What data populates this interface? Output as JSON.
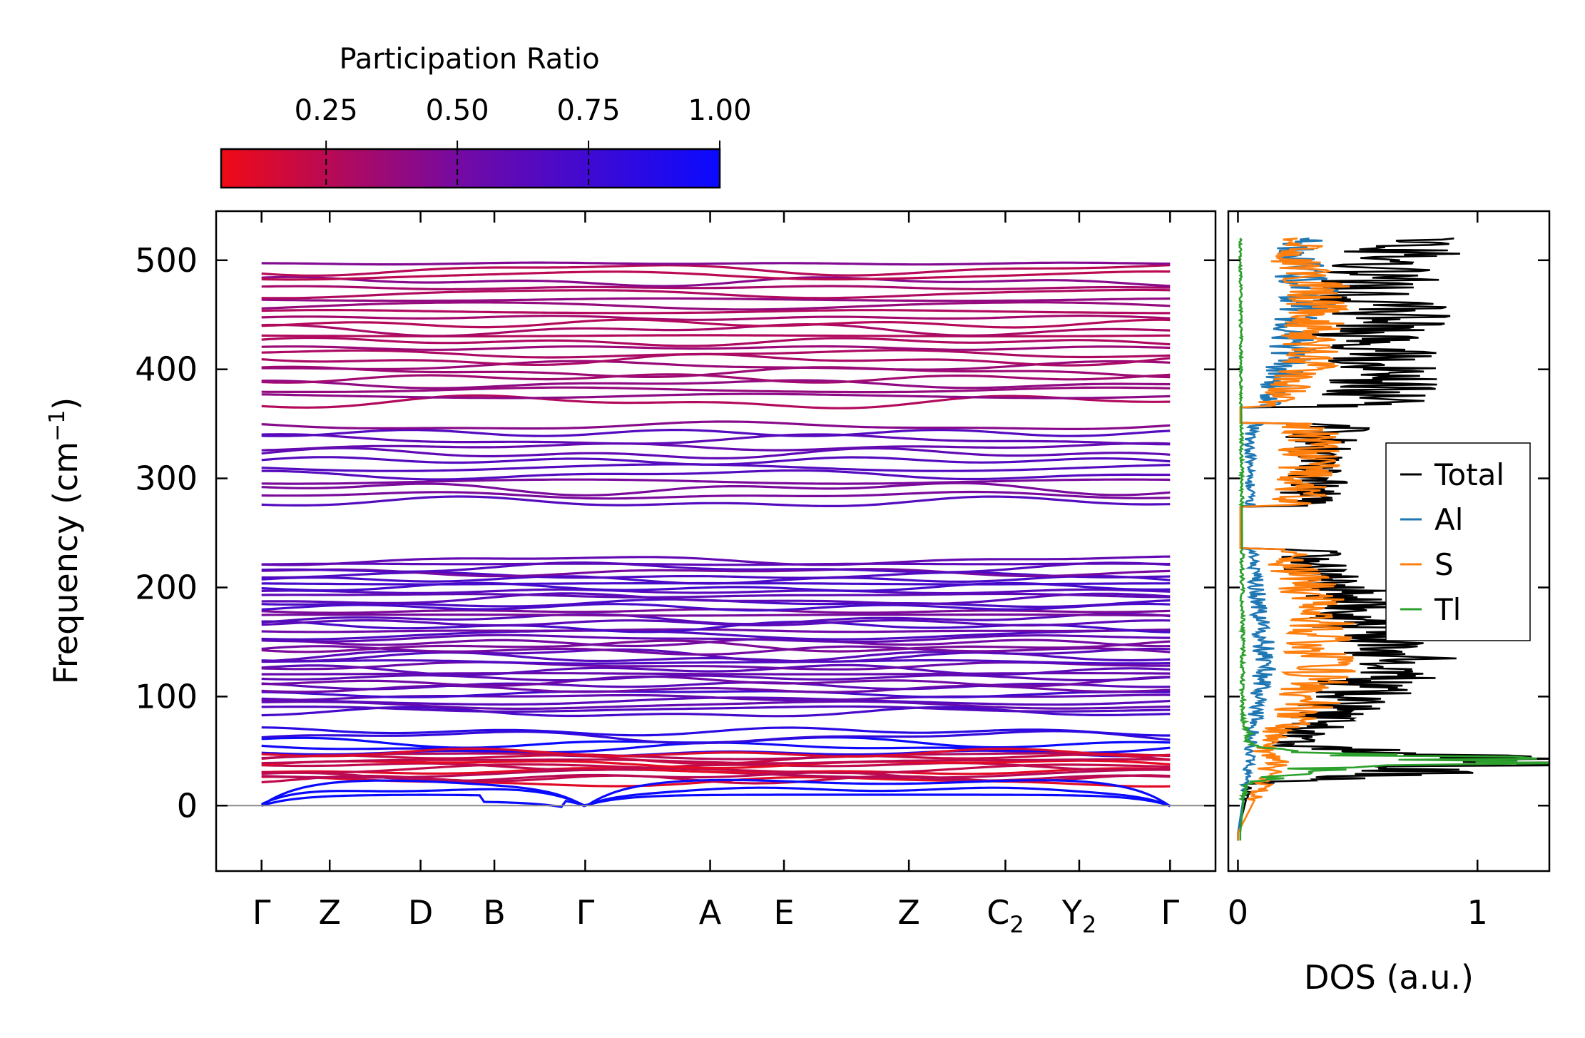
{
  "chart_data": [
    {
      "type": "line",
      "name": "phonon-dispersion",
      "ylabel": "Frequency (cm",
      "ylabel_sup": "−1",
      "ylabel_suffix": ")",
      "ylim": [
        -60,
        545
      ],
      "yticks": [
        0,
        100,
        200,
        300,
        400,
        500
      ],
      "ytick_labels": [
        "0",
        "100",
        "200",
        "300",
        "400",
        "500"
      ],
      "zero_line": true,
      "kpoints": [
        {
          "label": "Γ",
          "sub": "",
          "x": 0.0
        },
        {
          "label": "Z",
          "sub": "",
          "x": 0.6
        },
        {
          "label": "D",
          "sub": "",
          "x": 1.4
        },
        {
          "label": "B",
          "sub": "",
          "x": 2.05
        },
        {
          "label": "Γ",
          "sub": "",
          "x": 2.85
        },
        {
          "label": "A",
          "sub": "",
          "x": 3.95
        },
        {
          "label": "E",
          "sub": "",
          "x": 4.6
        },
        {
          "label": "Z",
          "sub": "",
          "x": 5.7
        },
        {
          "label": "C",
          "sub": "2",
          "x": 6.55
        },
        {
          "label": "Y",
          "sub": "2",
          "x": 7.2
        },
        {
          "label": "Γ",
          "sub": "",
          "x": 8.0
        }
      ],
      "xlim": [
        -0.4,
        8.4
      ],
      "band_groups": [
        {
          "range": [
            370,
            497
          ],
          "count": 24,
          "pr": 0.35
        },
        {
          "range": [
            278,
            348
          ],
          "count": 12,
          "pr": 0.55
        },
        {
          "range": [
            85,
            225
          ],
          "count": 40,
          "pr": 0.6
        },
        {
          "range": [
            48,
            68
          ],
          "count": 5,
          "pr": 0.92
        },
        {
          "range": [
            22,
            48
          ],
          "count": 12,
          "pr": 0.2
        }
      ],
      "acoustic_pr": 1.0,
      "colorbar": {
        "title": "Participation Ratio",
        "min": 0.05,
        "max": 1.0,
        "ticks": [
          0.25,
          0.5,
          0.75,
          1.0
        ],
        "tick_labels": [
          "0.25",
          "0.50",
          "0.75",
          "1.00"
        ],
        "color_low": "#f00a16",
        "color_mid": "#6f0aa8",
        "color_high": "#0a0aff"
      }
    },
    {
      "type": "line",
      "name": "density-of-states",
      "xlabel": "DOS (a.u.)",
      "xlim": [
        -0.04,
        1.3
      ],
      "xticks": [
        0,
        1
      ],
      "xtick_labels": [
        "0",
        "1"
      ],
      "ylim": [
        -60,
        545
      ],
      "legend_position": "center-right",
      "series": [
        {
          "name": "Total",
          "color": "#000000"
        },
        {
          "name": "Al",
          "color": "#1f77b4"
        },
        {
          "name": "S",
          "color": "#ff7f0e"
        },
        {
          "name": "Tl",
          "color": "#2ca02c"
        }
      ],
      "peaks": {
        "Tl": [
          [
            -25,
            0.01
          ],
          [
            20,
            0.03
          ],
          [
            36,
            0.4
          ],
          [
            40,
            1.2
          ],
          [
            45,
            0.8
          ],
          [
            50,
            0.25
          ],
          [
            55,
            0.06
          ],
          [
            80,
            0.02
          ],
          [
            150,
            0.02
          ],
          [
            520,
            0.01
          ]
        ],
        "Al": [
          [
            -25,
            0.0
          ],
          [
            45,
            0.05
          ],
          [
            90,
            0.08
          ],
          [
            130,
            0.12
          ],
          [
            160,
            0.1
          ],
          [
            200,
            0.08
          ],
          [
            220,
            0.06
          ],
          [
            300,
            0.05
          ],
          [
            340,
            0.05
          ],
          [
            400,
            0.2
          ],
          [
            470,
            0.3
          ],
          [
            490,
            0.25
          ]
        ],
        "S": [
          [
            -25,
            0.0
          ],
          [
            40,
            0.15
          ],
          [
            50,
            0.1
          ],
          [
            95,
            0.3
          ],
          [
            130,
            0.35
          ],
          [
            160,
            0.35
          ],
          [
            200,
            0.3
          ],
          [
            225,
            0.2
          ],
          [
            280,
            0.25
          ],
          [
            310,
            0.3
          ],
          [
            340,
            0.3
          ],
          [
            370,
            0.15
          ],
          [
            400,
            0.3
          ],
          [
            430,
            0.3
          ],
          [
            470,
            0.35
          ],
          [
            495,
            0.25
          ]
        ],
        "Total": [
          [
            -25,
            0.0
          ],
          [
            20,
            0.05
          ],
          [
            30,
            0.7
          ],
          [
            40,
            1.2
          ],
          [
            45,
            0.9
          ],
          [
            55,
            0.2
          ],
          [
            95,
            0.45
          ],
          [
            130,
            0.7
          ],
          [
            160,
            0.55
          ],
          [
            200,
            0.45
          ],
          [
            225,
            0.3
          ],
          [
            280,
            0.3
          ],
          [
            310,
            0.35
          ],
          [
            340,
            0.35
          ],
          [
            370,
            0.55
          ],
          [
            400,
            0.6
          ],
          [
            430,
            0.55
          ],
          [
            455,
            0.65
          ],
          [
            470,
            0.5
          ],
          [
            492,
            0.65
          ]
        ]
      }
    }
  ]
}
